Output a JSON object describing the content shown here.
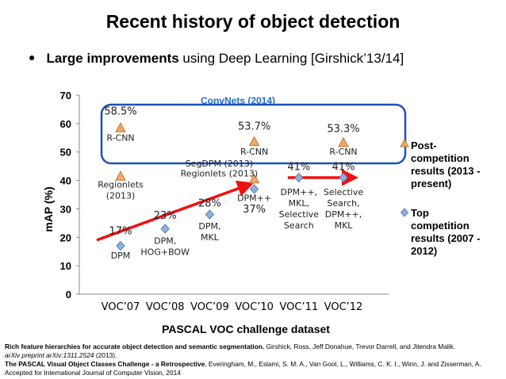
{
  "slide": {
    "title": "Recent history of object detection",
    "bullet_bold": "Large improvements",
    "bullet_rest": " using Deep Learning [Girshick’13/14]"
  },
  "colors": {
    "post_marker": "#f0a868",
    "post_stroke": "#c07838",
    "top_marker": "#8fb0dc",
    "top_stroke": "#5a7fb5",
    "convnets_box": "#1f4fb8",
    "arrow": "#ee1111",
    "title_blue": "#1f6fd0"
  },
  "chart_data": {
    "type": "scatter",
    "xlabel": "PASCAL VOC challenge dataset",
    "ylabel": "mAP  (%)",
    "ylim": [
      0,
      70
    ],
    "yticks": [
      "0",
      "10",
      "20",
      "30",
      "40",
      "50",
      "60",
      "70"
    ],
    "categories": [
      "VOC’07",
      "VOC’08",
      "VOC’09",
      "VOC’10",
      "VOC’11",
      "VOC’12"
    ],
    "series": [
      {
        "name": "Post-competition results (2013 - present)",
        "marker": "triangle",
        "points": [
          {
            "x": "VOC’07",
            "y": 58.5
          },
          {
            "x": "VOC’07",
            "y": 41.5
          },
          {
            "x": "VOC’10",
            "y": 53.7
          },
          {
            "x": "VOC’10",
            "y": 40.5
          },
          {
            "x": "VOC’12",
            "y": 53.3
          }
        ]
      },
      {
        "name": "Top competition results (2007 - 2012)",
        "marker": "diamond",
        "points": [
          {
            "x": "VOC’07",
            "y": 17
          },
          {
            "x": "VOC’08",
            "y": 23
          },
          {
            "x": "VOC’09",
            "y": 28
          },
          {
            "x": "VOC’10",
            "y": 37
          },
          {
            "x": "VOC’11",
            "y": 41
          },
          {
            "x": "VOC’12",
            "y": 41
          }
        ]
      }
    ],
    "labels": [
      {
        "text": "58.5%",
        "x": "VOC’07",
        "y": 63.2,
        "size": 13
      },
      {
        "text": "R-CNN",
        "x": "VOC’07",
        "y": 54.0,
        "size": 11
      },
      {
        "text": "Regionlets",
        "x": "VOC’07",
        "y": 37.5,
        "size": 11
      },
      {
        "text": "(2013)",
        "x": "VOC’07",
        "y": 33.6,
        "size": 11
      },
      {
        "text": "17%",
        "x": "VOC’07",
        "y": 21.0,
        "size": 13
      },
      {
        "text": "DPM",
        "x": "VOC’07",
        "y": 12.6,
        "size": 11
      },
      {
        "text": "23%",
        "x": "VOC’08",
        "y": 26.5,
        "size": 13
      },
      {
        "text": "DPM,",
        "x": "VOC’08",
        "y": 17.7,
        "size": 11
      },
      {
        "text": "HOG+BOW",
        "x": "VOC’08",
        "y": 13.8,
        "size": 11
      },
      {
        "text": "28%",
        "x": "VOC’09",
        "y": 30.8,
        "size": 13
      },
      {
        "text": "DPM,",
        "x": "VOC’09",
        "y": 22.8,
        "size": 11
      },
      {
        "text": "MKL",
        "x": "VOC’09",
        "y": 18.9,
        "size": 11
      },
      {
        "text": "53.7%",
        "x": "VOC’10",
        "y": 57.8,
        "size": 13
      },
      {
        "text": "R-CNN",
        "x": "VOC’10",
        "y": 49.1,
        "size": 11
      },
      {
        "text": "SegDPM (2013)",
        "x": "VOC’09",
        "y": 44.9,
        "size": 11
      },
      {
        "text": "Regionlets (2013)",
        "x": "VOC’09",
        "y": 41.4,
        "size": 11
      },
      {
        "text": "DPM++",
        "x": "VOC’10",
        "y": 32.8,
        "size": 11
      },
      {
        "text": "37%",
        "x": "VOC’10",
        "y": 28.7,
        "size": 13
      },
      {
        "text": "41%",
        "x": "VOC’11",
        "y": 43.7,
        "size": 13
      },
      {
        "text": "DPM++,",
        "x": "VOC’11",
        "y": 34.8,
        "size": 11
      },
      {
        "text": "MKL,",
        "x": "VOC’11",
        "y": 30.9,
        "size": 11
      },
      {
        "text": "Selective",
        "x": "VOC’11",
        "y": 27.0,
        "size": 11
      },
      {
        "text": "Search",
        "x": "VOC’11",
        "y": 23.1,
        "size": 11
      },
      {
        "text": "53.3%",
        "x": "VOC’12",
        "y": 57.1,
        "size": 13
      },
      {
        "text": "R-CNN",
        "x": "VOC’12",
        "y": 49.1,
        "size": 11
      },
      {
        "text": "41%",
        "x": "VOC’12",
        "y": 43.7,
        "size": 13
      },
      {
        "text": "Selective",
        "x": "VOC’12",
        "y": 34.8,
        "size": 11
      },
      {
        "text": "Search,",
        "x": "VOC’12",
        "y": 30.9,
        "size": 11
      },
      {
        "text": "DPM++,",
        "x": "VOC’12",
        "y": 27.0,
        "size": 11
      },
      {
        "text": "MKL",
        "x": "VOC’12",
        "y": 23.1,
        "size": 11
      }
    ],
    "annotation": "ConvNets (2014)",
    "legend": {
      "placement": "right",
      "post_lines": [
        "Post-",
        "competition",
        "results (2013 -",
        "present)"
      ],
      "top_lines": [
        "Top",
        "competition",
        "results (2007 -",
        "2012)"
      ]
    }
  },
  "references": {
    "ref1_bold": "Rich feature hierarchies for accurate object detection and semantic segmentation.",
    "ref1_rest": " Girshick, Ross, Jeff Donahue, Trevor Darrell, and Jitendra Malik.",
    "ref1_italic": "arXiv preprint arXiv:1311.2524",
    "ref1_year": " (2013).",
    "ref2_bold": "The PASCAL Visual Object Classes Challenge - a Retrospective",
    "ref2_rest": ", Everingham, M., Eslami, S. M. A., Van Gool, L., Williams, C. K. I., Winn, J. and Zisserman, A. Accepted for International Journal of Computer Vision, 2014"
  }
}
